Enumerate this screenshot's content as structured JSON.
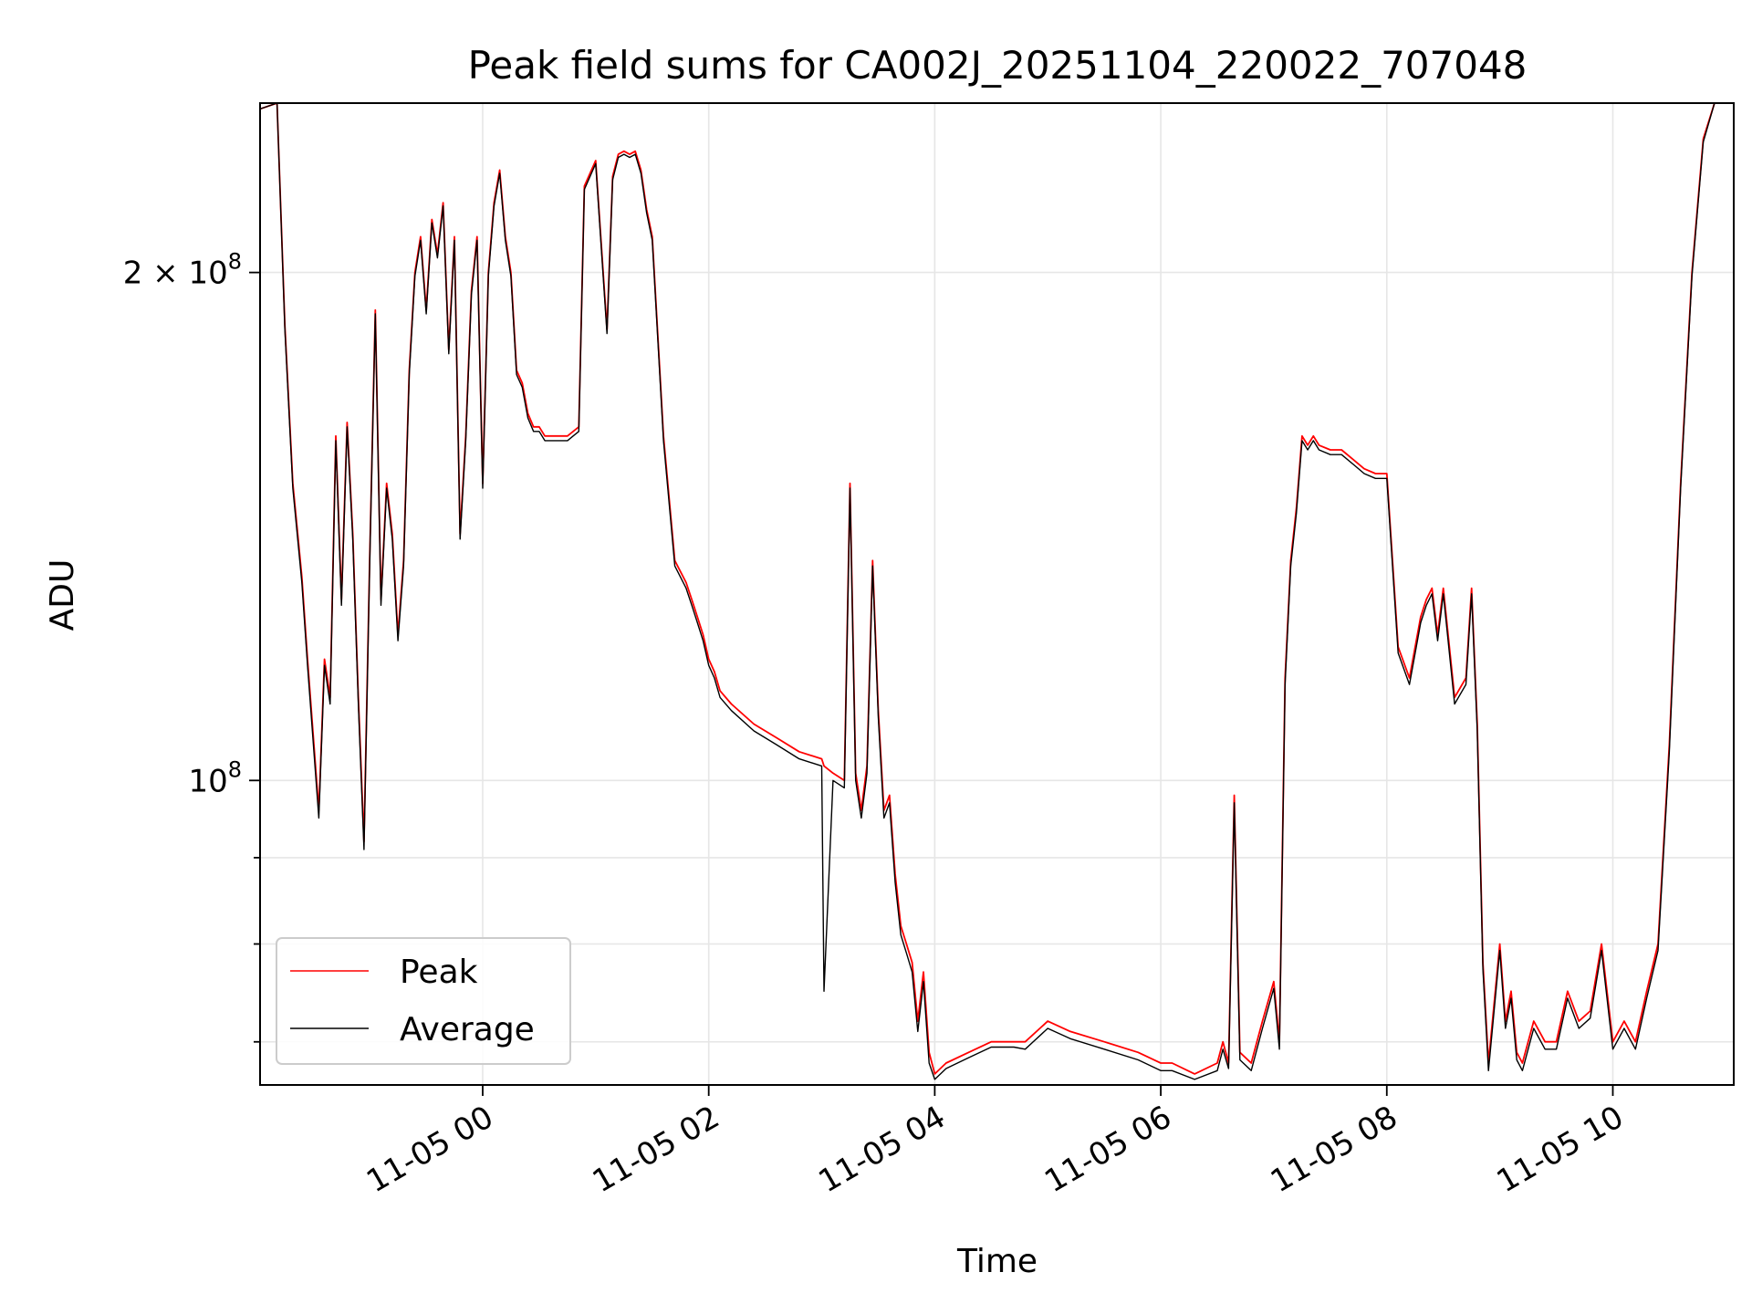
{
  "chart_data": {
    "type": "line",
    "title": "Peak field sums for CA002J_20251104_220022_707048",
    "xlabel": "Time",
    "ylabel": "ADU",
    "y_scale": "log",
    "x_range_hours": [
      -1.97,
      11.07
    ],
    "ylim": [
      66000000,
      252000000
    ],
    "x_ticks": [
      {
        "hour": 0,
        "label": "11-05 00"
      },
      {
        "hour": 2,
        "label": "11-05 02"
      },
      {
        "hour": 4,
        "label": "11-05 04"
      },
      {
        "hour": 6,
        "label": "11-05 06"
      },
      {
        "hour": 8,
        "label": "11-05 08"
      },
      {
        "hour": 10,
        "label": "11-05 10"
      }
    ],
    "y_major_ticks": [
      {
        "value": 100000000,
        "label_base": "10",
        "label_exp": "8"
      },
      {
        "value": 200000000,
        "label_base": "2 × 10",
        "label_exp": "8"
      }
    ],
    "y_minor_ticks": [
      60000000,
      70000000,
      80000000,
      90000000
    ],
    "grid": true,
    "legend": {
      "position": "lower-left",
      "entries": [
        "Peak",
        "Average"
      ]
    },
    "series": [
      {
        "name": "Peak",
        "color": "#ff0000",
        "x_hours": [
          -1.97,
          -1.82,
          -1.75,
          -1.68,
          -1.6,
          -1.55,
          -1.45,
          -1.4,
          -1.35,
          -1.3,
          -1.25,
          -1.2,
          -1.15,
          -1.1,
          -1.05,
          -1.0,
          -0.95,
          -0.9,
          -0.85,
          -0.8,
          -0.75,
          -0.7,
          -0.65,
          -0.6,
          -0.55,
          -0.5,
          -0.45,
          -0.4,
          -0.35,
          -0.3,
          -0.25,
          -0.2,
          -0.15,
          -0.1,
          -0.05,
          0.0,
          0.05,
          0.1,
          0.15,
          0.2,
          0.25,
          0.3,
          0.35,
          0.4,
          0.45,
          0.5,
          0.55,
          0.6,
          0.65,
          0.7,
          0.75,
          0.8,
          0.85,
          0.9,
          1.0,
          1.1,
          1.15,
          1.2,
          1.25,
          1.3,
          1.35,
          1.4,
          1.45,
          1.5,
          1.6,
          1.7,
          1.8,
          1.85,
          1.9,
          1.95,
          2.0,
          2.05,
          2.1,
          2.2,
          2.4,
          2.6,
          2.8,
          3.0,
          3.02,
          3.1,
          3.2,
          3.25,
          3.3,
          3.35,
          3.4,
          3.45,
          3.5,
          3.55,
          3.6,
          3.65,
          3.7,
          3.75,
          3.8,
          3.85,
          3.9,
          3.95,
          4.0,
          4.1,
          4.3,
          4.5,
          4.7,
          4.8,
          5.0,
          5.2,
          5.5,
          5.8,
          6.0,
          6.1,
          6.3,
          6.5,
          6.55,
          6.6,
          6.65,
          6.7,
          6.8,
          6.9,
          7.0,
          7.05,
          7.1,
          7.15,
          7.2,
          7.25,
          7.3,
          7.35,
          7.4,
          7.5,
          7.6,
          7.7,
          7.8,
          7.9,
          8.0,
          8.1,
          8.2,
          8.3,
          8.35,
          8.4,
          8.45,
          8.5,
          8.6,
          8.7,
          8.75,
          8.8,
          8.85,
          8.9,
          9.0,
          9.05,
          9.1,
          9.15,
          9.2,
          9.3,
          9.4,
          9.5,
          9.6,
          9.7,
          9.8,
          9.9,
          10.0,
          10.1,
          10.2,
          10.3,
          10.4,
          10.5,
          10.6,
          10.7,
          10.8,
          10.9,
          11.07
        ],
        "values": [
          250000000,
          252000000,
          186000000,
          150000000,
          132000000,
          118000000,
          96000000,
          118000000,
          112000000,
          160000000,
          128000000,
          163000000,
          140000000,
          112000000,
          92000000,
          135000000,
          190000000,
          128000000,
          150000000,
          140000000,
          122000000,
          135000000,
          175000000,
          200000000,
          210000000,
          190000000,
          215000000,
          205000000,
          220000000,
          180000000,
          210000000,
          140000000,
          160000000,
          195000000,
          210000000,
          150000000,
          200000000,
          220000000,
          230000000,
          210000000,
          200000000,
          175000000,
          172000000,
          165000000,
          162000000,
          162000000,
          160000000,
          160000000,
          160000000,
          160000000,
          160000000,
          161000000,
          162000000,
          225000000,
          233000000,
          185000000,
          228000000,
          235000000,
          236000000,
          235000000,
          236000000,
          230000000,
          218000000,
          210000000,
          160000000,
          135000000,
          131000000,
          128000000,
          125000000,
          122000000,
          118000000,
          116000000,
          113000000,
          111000000,
          108000000,
          106000000,
          104000000,
          103000000,
          102000000,
          101000000,
          100000000,
          150000000,
          101000000,
          96000000,
          102000000,
          135000000,
          110000000,
          96000000,
          98000000,
          88000000,
          82000000,
          80000000,
          78000000,
          72000000,
          77000000,
          69000000,
          67000000,
          68000000,
          69000000,
          70000000,
          70000000,
          70000000,
          72000000,
          71000000,
          70000000,
          69000000,
          68000000,
          68000000,
          67000000,
          68000000,
          70000000,
          68000000,
          98000000,
          69000000,
          68000000,
          72000000,
          76000000,
          70000000,
          115000000,
          135000000,
          145000000,
          160000000,
          158000000,
          160000000,
          158000000,
          157000000,
          157000000,
          155000000,
          153000000,
          152000000,
          152000000,
          120000000,
          115000000,
          125000000,
          128000000,
          130000000,
          122000000,
          130000000,
          112000000,
          115000000,
          130000000,
          108000000,
          78000000,
          68000000,
          80000000,
          72000000,
          75000000,
          69000000,
          68000000,
          72000000,
          70000000,
          70000000,
          75000000,
          72000000,
          73000000,
          80000000,
          70000000,
          72000000,
          70000000,
          75000000,
          80000000,
          105000000,
          150000000,
          200000000,
          240000000,
          252000000,
          252000000
        ]
      },
      {
        "name": "Average",
        "color": "#000000",
        "x_hours": [
          -1.97,
          -1.82,
          -1.75,
          -1.68,
          -1.6,
          -1.55,
          -1.45,
          -1.4,
          -1.35,
          -1.3,
          -1.25,
          -1.2,
          -1.15,
          -1.1,
          -1.05,
          -1.0,
          -0.95,
          -0.9,
          -0.85,
          -0.8,
          -0.75,
          -0.7,
          -0.65,
          -0.6,
          -0.55,
          -0.5,
          -0.45,
          -0.4,
          -0.35,
          -0.3,
          -0.25,
          -0.2,
          -0.15,
          -0.1,
          -0.05,
          0.0,
          0.05,
          0.1,
          0.15,
          0.2,
          0.25,
          0.3,
          0.35,
          0.4,
          0.45,
          0.5,
          0.55,
          0.6,
          0.65,
          0.7,
          0.75,
          0.8,
          0.85,
          0.9,
          1.0,
          1.1,
          1.15,
          1.2,
          1.25,
          1.3,
          1.35,
          1.4,
          1.45,
          1.5,
          1.6,
          1.7,
          1.8,
          1.85,
          1.9,
          1.95,
          2.0,
          2.05,
          2.1,
          2.2,
          2.4,
          2.6,
          2.8,
          3.0,
          3.02,
          3.1,
          3.2,
          3.25,
          3.3,
          3.35,
          3.4,
          3.45,
          3.5,
          3.55,
          3.6,
          3.65,
          3.7,
          3.75,
          3.8,
          3.85,
          3.9,
          3.95,
          4.0,
          4.1,
          4.3,
          4.5,
          4.7,
          4.8,
          5.0,
          5.2,
          5.5,
          5.8,
          6.0,
          6.1,
          6.3,
          6.5,
          6.55,
          6.6,
          6.65,
          6.7,
          6.8,
          6.9,
          7.0,
          7.05,
          7.1,
          7.15,
          7.2,
          7.25,
          7.3,
          7.35,
          7.4,
          7.5,
          7.6,
          7.7,
          7.8,
          7.9,
          8.0,
          8.1,
          8.2,
          8.3,
          8.35,
          8.4,
          8.45,
          8.5,
          8.6,
          8.7,
          8.75,
          8.8,
          8.85,
          8.9,
          9.0,
          9.05,
          9.1,
          9.15,
          9.2,
          9.3,
          9.4,
          9.5,
          9.6,
          9.7,
          9.8,
          9.9,
          10.0,
          10.1,
          10.2,
          10.3,
          10.4,
          10.5,
          10.6,
          10.7,
          10.8,
          10.9,
          11.07
        ],
        "values": [
          250000000,
          252000000,
          185000000,
          149000000,
          131000000,
          117000000,
          95000000,
          117000000,
          111000000,
          159000000,
          127000000,
          162000000,
          139000000,
          111000000,
          91000000,
          134000000,
          189000000,
          127000000,
          149000000,
          139000000,
          121000000,
          134000000,
          174000000,
          199000000,
          209000000,
          189000000,
          214000000,
          204000000,
          219000000,
          179000000,
          209000000,
          139000000,
          159000000,
          194000000,
          209000000,
          149000000,
          199000000,
          219000000,
          229000000,
          209000000,
          199000000,
          174000000,
          171000000,
          164000000,
          161000000,
          161000000,
          159000000,
          159000000,
          159000000,
          159000000,
          159000000,
          160000000,
          161000000,
          224000000,
          232000000,
          184000000,
          227000000,
          234000000,
          235000000,
          234000000,
          235000000,
          229000000,
          217000000,
          209000000,
          159000000,
          134000000,
          130000000,
          127000000,
          124000000,
          121000000,
          117000000,
          115000000,
          112000000,
          110000000,
          107000000,
          105000000,
          103000000,
          102000000,
          75000000,
          100000000,
          99000000,
          149000000,
          100000000,
          95000000,
          101000000,
          134000000,
          109000000,
          95000000,
          97000000,
          87000000,
          81000000,
          79000000,
          77000000,
          71000000,
          76000000,
          68000000,
          66500000,
          67500000,
          68500000,
          69500000,
          69500000,
          69300000,
          71300000,
          70300000,
          69300000,
          68300000,
          67300000,
          67300000,
          66500000,
          67300000,
          69300000,
          67500000,
          97000000,
          68300000,
          67300000,
          71300000,
          75300000,
          69300000,
          114000000,
          134000000,
          144000000,
          159000000,
          157000000,
          159000000,
          157000000,
          156000000,
          156000000,
          154000000,
          152000000,
          151000000,
          151000000,
          119000000,
          114000000,
          124000000,
          127000000,
          129000000,
          121000000,
          129000000,
          111000000,
          114000000,
          129000000,
          107000000,
          77300000,
          67300000,
          79300000,
          71300000,
          74300000,
          68300000,
          67300000,
          71300000,
          69300000,
          69300000,
          74300000,
          71300000,
          72300000,
          79300000,
          69300000,
          71300000,
          69300000,
          74300000,
          79300000,
          104000000,
          149000000,
          199000000,
          239000000,
          252000000,
          252000000
        ]
      }
    ]
  }
}
